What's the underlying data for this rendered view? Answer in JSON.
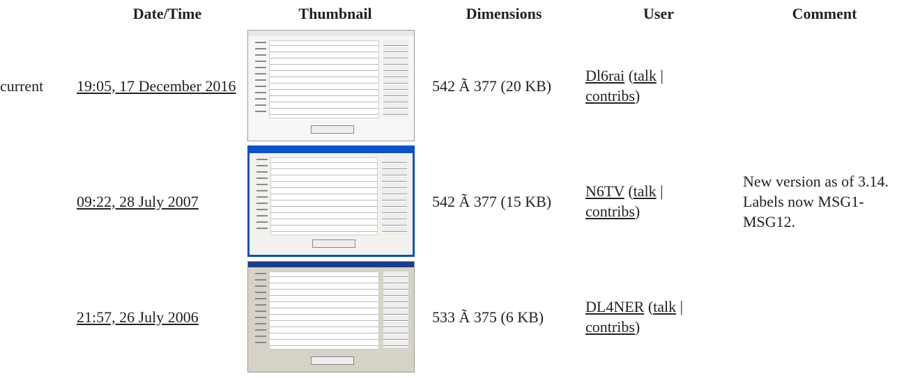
{
  "table": {
    "headers": [
      "Date/Time",
      "Thumbnail",
      "Dimensions",
      "User",
      "Comment"
    ],
    "rows": [
      {
        "status": "current",
        "date": "19:05, 17 December 2016",
        "dimensions": "542 Ã 377 (20 KB)",
        "user": [
          "Dl6rai",
          " (",
          "talk",
          " | ",
          "contribs",
          ")"
        ]
      },
      {
        "date": "09:22, 28 July 2007",
        "dimensions": "542 Ã 377 (15 KB)",
        "user": [
          "N6TV",
          " (",
          "talk",
          " | ",
          "contribs",
          ")"
        ],
        "comment": "New version as of 3.14. Labels now MSG1-MSG12."
      },
      {
        "date": "21:57, 26 July 2006",
        "dimensions": "533 Ã 375 (6 KB)",
        "user": [
          "DL4NER",
          " (",
          "talk",
          " | ",
          "contribs",
          ")"
        ]
      }
    ]
  }
}
